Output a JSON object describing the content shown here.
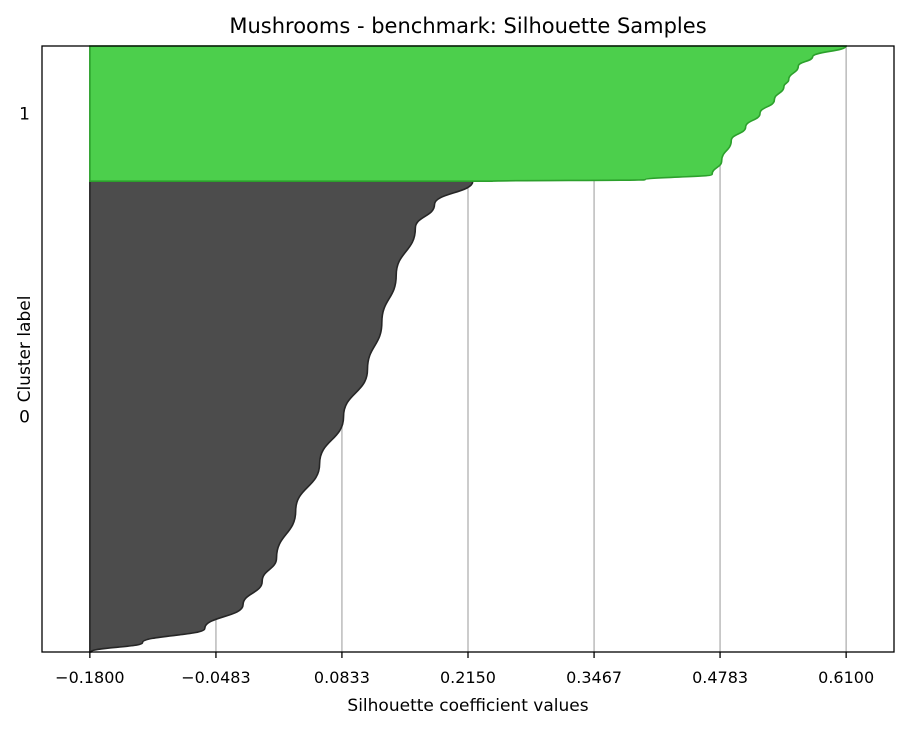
{
  "chart_data": {
    "type": "area",
    "title": "Mushrooms - benchmark: Silhouette Samples",
    "xlabel": "Silhouette coefficient values",
    "ylabel": "Cluster label",
    "xlim": [
      -0.23,
      0.66
    ],
    "xticks": [
      -0.18,
      -0.0483,
      0.0833,
      0.215,
      0.3467,
      0.4783,
      0.61
    ],
    "xtick_labels": [
      "−0.1800",
      "−0.0483",
      "0.0833",
      "0.2150",
      "0.3467",
      "0.4783",
      "0.6100"
    ],
    "grid": "x-only",
    "clusters": [
      {
        "label": "0",
        "color": "#4c4c4c",
        "edge_color": "#262626",
        "sorted_fraction": [
          0,
          0.02,
          0.05,
          0.1,
          0.15,
          0.2,
          0.3,
          0.4,
          0.5,
          0.6,
          0.7,
          0.8,
          0.9,
          0.95,
          1.0
        ],
        "silhouette_values": [
          -0.179,
          -0.125,
          -0.06,
          -0.02,
          0.0,
          0.015,
          0.035,
          0.06,
          0.085,
          0.11,
          0.125,
          0.14,
          0.16,
          0.18,
          0.22
        ]
      },
      {
        "label": "1",
        "color": "#4ccf4c",
        "edge_color": "#2ca02c",
        "sorted_fraction": [
          0,
          0.01,
          0.05,
          0.15,
          0.3,
          0.4,
          0.5,
          0.6,
          0.7,
          0.75,
          0.85,
          0.92,
          1.0
        ],
        "silhouette_values": [
          0.24,
          0.4,
          0.47,
          0.48,
          0.49,
          0.505,
          0.52,
          0.535,
          0.545,
          0.55,
          0.56,
          0.575,
          0.61
        ]
      }
    ]
  }
}
